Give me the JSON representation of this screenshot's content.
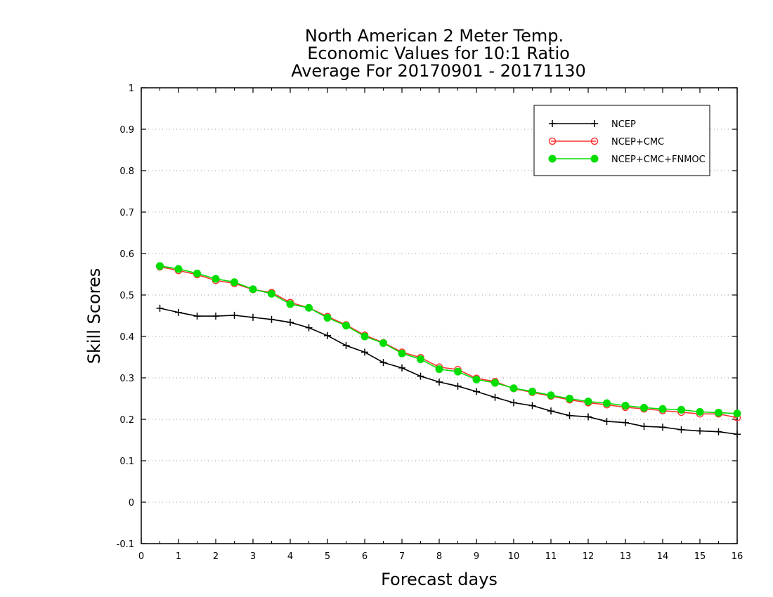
{
  "chart_data": {
    "type": "line",
    "title_lines": [
      "North American 2 Meter Temp.",
      "Economic Values for 10:1 Ratio",
      "Average For 20170901 - 20171130"
    ],
    "xlabel": "Forecast days",
    "ylabel": "Skill Scores",
    "xlim": [
      0,
      16
    ],
    "ylim": [
      -0.1,
      1
    ],
    "x_ticks": [
      0,
      1,
      2,
      3,
      4,
      5,
      6,
      7,
      8,
      9,
      10,
      11,
      12,
      13,
      14,
      15,
      16
    ],
    "y_ticks": [
      -0.1,
      0,
      0.1,
      0.2,
      0.3,
      0.4,
      0.5,
      0.6,
      0.7,
      0.8,
      0.9,
      1
    ],
    "y_tick_labels": [
      "-0.1",
      "0",
      "0.1",
      "0.2",
      "0.3",
      "0.4",
      "0.5",
      "0.6",
      "0.7",
      "0.8",
      "0.9",
      "1"
    ],
    "grid": "horizontal dotted",
    "legend_position": "top-right",
    "x": [
      0.5,
      1,
      1.5,
      2,
      2.5,
      3,
      3.5,
      4,
      4.5,
      5,
      5.5,
      6,
      6.5,
      7,
      7.5,
      8,
      8.5,
      9,
      9.5,
      10,
      10.5,
      11,
      11.5,
      12,
      12.5,
      13,
      13.5,
      14,
      14.5,
      15,
      15.5,
      16
    ],
    "series": [
      {
        "name": "NCEP",
        "color": "#000000",
        "marker": "plus",
        "values": [
          0.468,
          0.458,
          0.449,
          0.449,
          0.451,
          0.446,
          0.441,
          0.434,
          0.421,
          0.402,
          0.378,
          0.362,
          0.337,
          0.324,
          0.304,
          0.29,
          0.28,
          0.267,
          0.253,
          0.24,
          0.233,
          0.22,
          0.209,
          0.206,
          0.195,
          0.192,
          0.183,
          0.181,
          0.175,
          0.172,
          0.17,
          0.164
        ]
      },
      {
        "name": "NCEP+CMC",
        "color": "#ff3333",
        "marker": "open-circle",
        "values": [
          0.568,
          0.559,
          0.549,
          0.535,
          0.528,
          0.513,
          0.506,
          0.482,
          0.469,
          0.448,
          0.428,
          0.403,
          0.385,
          0.362,
          0.349,
          0.326,
          0.32,
          0.299,
          0.291,
          0.274,
          0.265,
          0.256,
          0.247,
          0.24,
          0.235,
          0.229,
          0.225,
          0.221,
          0.217,
          0.213,
          0.213,
          0.204
        ]
      },
      {
        "name": "NCEP+CMC+FNMOC",
        "color": "#00dd00",
        "marker": "filled-circle",
        "values": [
          0.57,
          0.563,
          0.552,
          0.539,
          0.531,
          0.514,
          0.503,
          0.478,
          0.469,
          0.445,
          0.426,
          0.4,
          0.384,
          0.359,
          0.345,
          0.321,
          0.315,
          0.296,
          0.288,
          0.275,
          0.267,
          0.258,
          0.25,
          0.243,
          0.239,
          0.233,
          0.228,
          0.225,
          0.223,
          0.218,
          0.216,
          0.214
        ]
      }
    ]
  }
}
